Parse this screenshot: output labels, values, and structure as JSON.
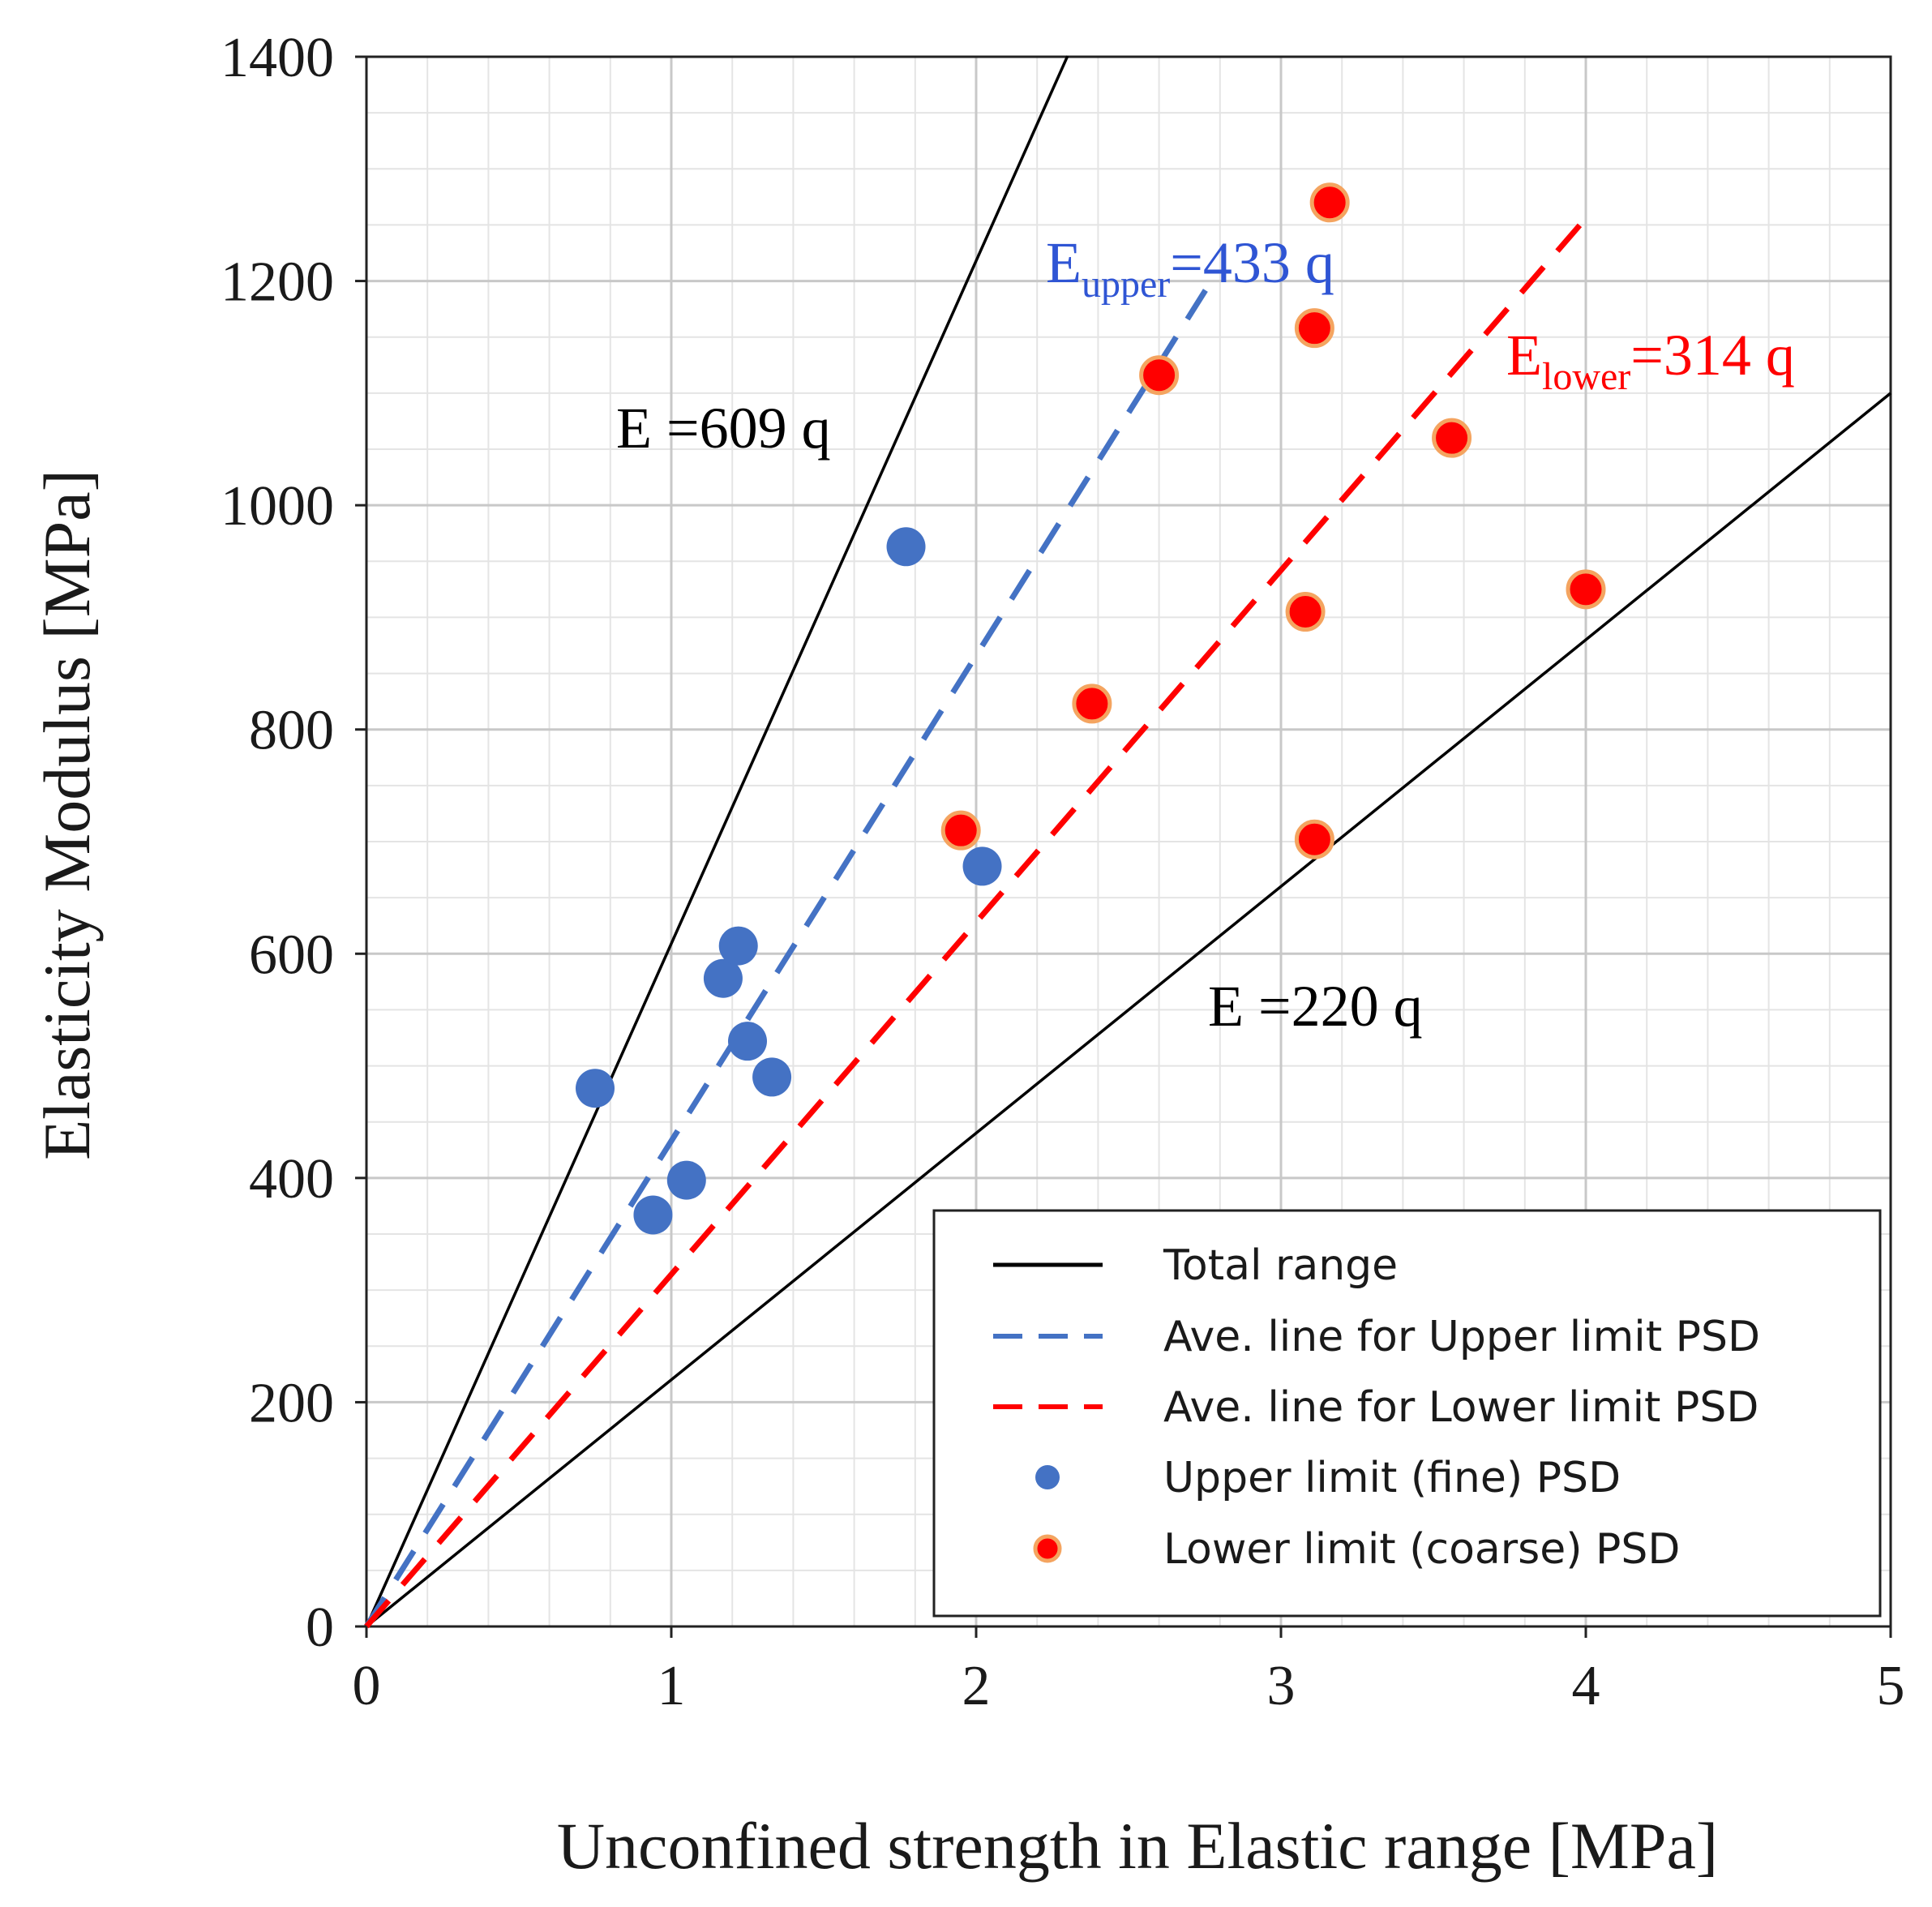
{
  "chart_data": {
    "type": "scatter",
    "xlabel": "Unconfined strength in Elastic range [MPa]",
    "ylabel": "Elasticity Modulus [MPa]",
    "xlim": [
      0,
      5
    ],
    "ylim": [
      0,
      1400
    ],
    "x_ticks": [
      "0",
      "1",
      "2",
      "3",
      "4",
      "5"
    ],
    "y_ticks": [
      "0",
      "200",
      "400",
      "600",
      "800",
      "1000",
      "1200",
      "1400"
    ],
    "grid": true,
    "legend_position": "bottom-right",
    "lines": [
      {
        "name": "Total range",
        "slope": 609,
        "x_range": [
          0,
          2.3
        ],
        "style": "solid",
        "color": "#000000"
      },
      {
        "name": "Total range",
        "slope": 220,
        "x_range": [
          0,
          5
        ],
        "style": "solid",
        "color": "#000000"
      },
      {
        "name": "Ave. line for Upper limit PSD",
        "slope": 433,
        "x_range": [
          0,
          2.78
        ],
        "style": "dashed",
        "color": "#4472C4"
      },
      {
        "name": "Ave. line for Lower limit PSD",
        "slope": 314,
        "x_range": [
          0,
          3.98
        ],
        "style": "dashed",
        "color": "#FF0000"
      }
    ],
    "series": [
      {
        "name": "Upper limit (fine) PSD",
        "color": "#4472C4",
        "points": [
          [
            0.75,
            480
          ],
          [
            0.94,
            367
          ],
          [
            1.05,
            398
          ],
          [
            1.17,
            578
          ],
          [
            1.22,
            607
          ],
          [
            1.25,
            522
          ],
          [
            1.33,
            490
          ],
          [
            1.77,
            963
          ],
          [
            2.02,
            678
          ]
        ]
      },
      {
        "name": "Lower limit (coarse) PSD",
        "color": "#FF0000",
        "edge_color": "#F4A460",
        "points": [
          [
            1.95,
            710
          ],
          [
            2.38,
            823
          ],
          [
            2.6,
            1116
          ],
          [
            3.08,
            905
          ],
          [
            3.11,
            1158
          ],
          [
            3.11,
            702
          ],
          [
            3.16,
            1270
          ],
          [
            3.56,
            1060
          ],
          [
            4.0,
            925
          ]
        ]
      }
    ],
    "annotations": [
      {
        "id": "e609",
        "text": "E =609 q",
        "color": "#000000"
      },
      {
        "id": "e220",
        "text": "E =220 q",
        "color": "#000000"
      },
      {
        "id": "eupper",
        "base": "E",
        "sub": "upper",
        "rest": "=433 q",
        "color": "#2F55D4"
      },
      {
        "id": "elower",
        "base": "E",
        "sub": "lower",
        "rest": "=314 q",
        "color": "#FF0000"
      }
    ],
    "legend": [
      {
        "label": "Total range",
        "kind": "line",
        "style": "solid",
        "color": "#000000"
      },
      {
        "label": "Ave. line for Upper limit PSD",
        "kind": "line",
        "style": "dashed",
        "color": "#4472C4"
      },
      {
        "label": "Ave. line for Lower limit PSD",
        "kind": "line",
        "style": "dashed",
        "color": "#FF0000"
      },
      {
        "label": "Upper limit (fine) PSD",
        "kind": "marker",
        "color": "#4472C4"
      },
      {
        "label": "Lower limit (coarse) PSD",
        "kind": "marker",
        "color": "#FF0000",
        "edge_color": "#F4A460"
      }
    ]
  }
}
